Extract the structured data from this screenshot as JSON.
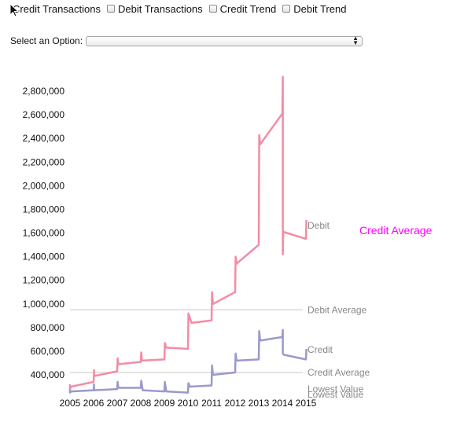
{
  "controls": {
    "checkboxes": [
      {
        "label": "Credit Transactions",
        "checked": false
      },
      {
        "label": "Debit Transactions",
        "checked": false
      },
      {
        "label": "Credit Trend",
        "checked": false
      },
      {
        "label": "Debit Trend",
        "checked": false
      }
    ],
    "select_label": "Select an Option:",
    "select_value": ""
  },
  "chart_data": {
    "type": "line",
    "y_ticks": [
      "400,000",
      "600,000",
      "800,000",
      "1,000,000",
      "1,200,000",
      "1,400,000",
      "1,600,000",
      "1,800,000",
      "2,000,000",
      "2,200,000",
      "2,400,000",
      "2,600,000",
      "2,800,000"
    ],
    "x_ticks": [
      "2005",
      "2006",
      "2007",
      "2008",
      "2009",
      "2010",
      "2011",
      "2012",
      "2013",
      "2014",
      "2015"
    ],
    "ylim": [
      250000,
      2950000
    ],
    "xlim": [
      2005,
      2015
    ],
    "series": [
      {
        "name": "Debit",
        "color": "#f48ca6",
        "points": [
          [
            2005.0,
            320000
          ],
          [
            2005.0,
            280000
          ],
          [
            2005.05,
            300000
          ],
          [
            2006.0,
            340000
          ],
          [
            2006.02,
            440000
          ],
          [
            2006.02,
            390000
          ],
          [
            2007.0,
            430000
          ],
          [
            2007.02,
            540000
          ],
          [
            2007.05,
            490000
          ],
          [
            2008.0,
            510000
          ],
          [
            2008.02,
            590000
          ],
          [
            2008.05,
            520000
          ],
          [
            2009.0,
            530000
          ],
          [
            2009.02,
            670000
          ],
          [
            2009.08,
            630000
          ],
          [
            2010.0,
            620000
          ],
          [
            2010.02,
            920000
          ],
          [
            2010.15,
            840000
          ],
          [
            2011.0,
            860000
          ],
          [
            2011.02,
            1100000
          ],
          [
            2011.06,
            1000000
          ],
          [
            2012.0,
            1100000
          ],
          [
            2012.02,
            1400000
          ],
          [
            2012.06,
            1340000
          ],
          [
            2013.0,
            1500000
          ],
          [
            2013.02,
            2430000
          ],
          [
            2013.06,
            2350000
          ],
          [
            2014.0,
            2610000
          ],
          [
            2014.02,
            2920000
          ],
          [
            2014.02,
            1420000
          ],
          [
            2014.04,
            1610000
          ],
          [
            2015.0,
            1550000
          ],
          [
            2015.02,
            1710000
          ]
        ]
      },
      {
        "name": "Credit",
        "color": "#9b99cd",
        "points": [
          [
            2005.0,
            280000
          ],
          [
            2005.0,
            250000
          ],
          [
            2005.05,
            260000
          ],
          [
            2006.0,
            270000
          ],
          [
            2006.02,
            320000
          ],
          [
            2006.02,
            270000
          ],
          [
            2007.0,
            280000
          ],
          [
            2007.02,
            340000
          ],
          [
            2007.05,
            290000
          ],
          [
            2008.0,
            290000
          ],
          [
            2008.02,
            350000
          ],
          [
            2008.08,
            270000
          ],
          [
            2009.0,
            260000
          ],
          [
            2009.02,
            340000
          ],
          [
            2009.08,
            260000
          ],
          [
            2010.0,
            250000
          ],
          [
            2010.02,
            330000
          ],
          [
            2010.08,
            300000
          ],
          [
            2011.0,
            310000
          ],
          [
            2011.02,
            480000
          ],
          [
            2011.06,
            400000
          ],
          [
            2012.0,
            420000
          ],
          [
            2012.02,
            580000
          ],
          [
            2012.06,
            520000
          ],
          [
            2013.0,
            530000
          ],
          [
            2013.02,
            770000
          ],
          [
            2013.06,
            690000
          ],
          [
            2014.0,
            720000
          ],
          [
            2014.02,
            780000
          ],
          [
            2014.02,
            580000
          ],
          [
            2014.06,
            570000
          ],
          [
            2015.0,
            530000
          ],
          [
            2015.02,
            620000
          ]
        ]
      }
    ],
    "reference_lines": [
      {
        "label": "Debit Average",
        "value": 950000,
        "color": "#e3e3e3"
      },
      {
        "label": "Credit Average",
        "value": 420000,
        "color": "#e3e3e3"
      }
    ],
    "end_labels": {
      "debit": "Debit",
      "credit": "Credit",
      "lowest_1": "Lowest Value",
      "lowest_2": "Lowest Value"
    },
    "callout": {
      "label": "Credit Average",
      "color": "#ff00ff"
    }
  }
}
